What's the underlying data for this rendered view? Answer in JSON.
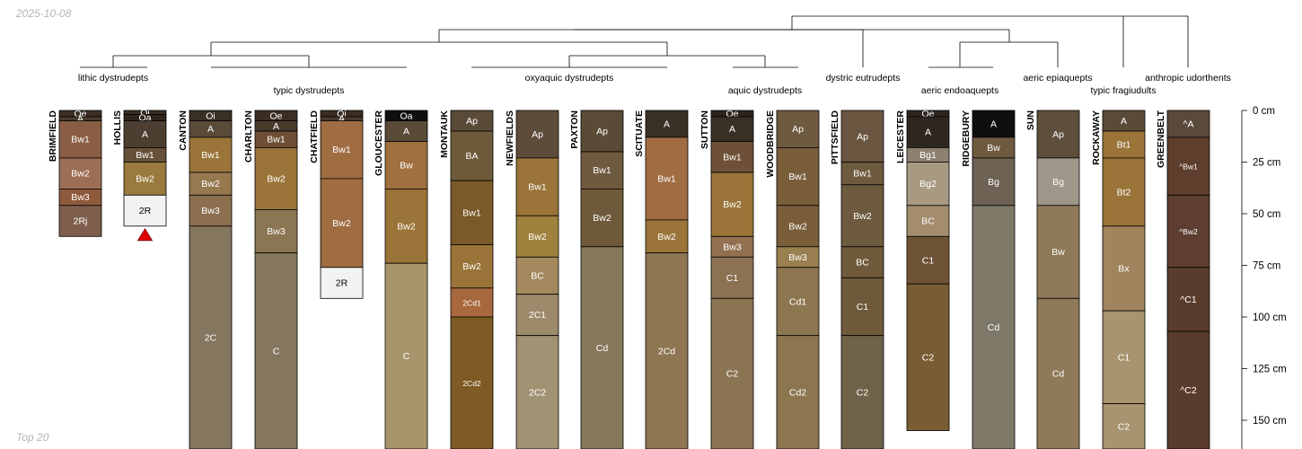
{
  "header": {
    "date": "2025-10-08"
  },
  "footer": {
    "note": "Top 20"
  },
  "chart_data": {
    "type": "soil-profile-sketch",
    "depth_unit": "cm",
    "depth_max": 163,
    "depth_ticks": [
      0,
      25,
      50,
      75,
      100,
      125,
      150
    ],
    "depth_tick_labels": [
      "0 cm",
      "25 cm",
      "50 cm",
      "75 cm",
      "100 cm",
      "125 cm",
      "150 cm"
    ],
    "groups": [
      {
        "label": "lithic dystrudepts",
        "profiles": [
          "BRIMFIELD",
          "HOLLIS"
        ]
      },
      {
        "label": "typic dystrudepts",
        "profiles": [
          "CANTON",
          "CHARLTON",
          "CHATFIELD",
          "GLOUCESTER"
        ]
      },
      {
        "label": "oxyaquic dystrudepts",
        "profiles": [
          "MONTAUK",
          "NEWFIELDS",
          "PAXTON",
          "SCITUATE"
        ]
      },
      {
        "label": "aquic dystrudepts",
        "profiles": [
          "SUTTON",
          "WOODBRIDGE"
        ]
      },
      {
        "label": "dystric eutrudepts",
        "profiles": [
          "PITTSFIELD"
        ]
      },
      {
        "label": "aeric endoaquepts",
        "profiles": [
          "LEICESTER",
          "RIDGEBURY"
        ]
      },
      {
        "label": "aeric epiaquepts",
        "profiles": [
          "SUN"
        ]
      },
      {
        "label": "typic fragiudults",
        "profiles": [
          "ROCKAWAY"
        ]
      },
      {
        "label": "anthropic udorthents",
        "profiles": [
          "GREENBELT"
        ]
      }
    ],
    "profiles": [
      {
        "name": "BRIMFIELD",
        "bedrock": false,
        "horizons": [
          {
            "name": "Oe",
            "top": 0,
            "bottom": 3,
            "color": "#3b2e24"
          },
          {
            "name": "A",
            "top": 3,
            "bottom": 5,
            "color": "#4a3a2c"
          },
          {
            "name": "Bw1",
            "top": 5,
            "bottom": 23,
            "color": "#8a5e44"
          },
          {
            "name": "Bw2",
            "top": 23,
            "bottom": 38,
            "color": "#9c6e56"
          },
          {
            "name": "Bw3",
            "top": 38,
            "bottom": 46,
            "color": "#8e5a3c"
          },
          {
            "name": "2Rj",
            "top": 46,
            "bottom": 61,
            "color": "#7e5e4c"
          }
        ]
      },
      {
        "name": "HOLLIS",
        "bedrock": true,
        "horizons": [
          {
            "name": "Oi",
            "top": 0,
            "bottom": 2,
            "color": "#3a2d22"
          },
          {
            "name": "Oa",
            "top": 2,
            "bottom": 5,
            "color": "#2f241d"
          },
          {
            "name": "A",
            "top": 5,
            "bottom": 18,
            "color": "#4c3e30"
          },
          {
            "name": "Bw1",
            "top": 18,
            "bottom": 25,
            "color": "#66523a"
          },
          {
            "name": "Bw2",
            "top": 25,
            "bottom": 41,
            "color": "#9a7a3e"
          },
          {
            "name": "2R",
            "top": 41,
            "bottom": 56,
            "color": "#f2f2f2"
          }
        ]
      },
      {
        "name": "CANTON",
        "bedrock": false,
        "horizons": [
          {
            "name": "Oi",
            "top": 0,
            "bottom": 5,
            "color": "#3a2f25"
          },
          {
            "name": "A",
            "top": 5,
            "bottom": 13,
            "color": "#5a4a38"
          },
          {
            "name": "Bw1",
            "top": 13,
            "bottom": 30,
            "color": "#9a7438"
          },
          {
            "name": "Bw2",
            "top": 30,
            "bottom": 41,
            "color": "#96794f"
          },
          {
            "name": "Bw3",
            "top": 41,
            "bottom": 56,
            "color": "#8c6f4f"
          },
          {
            "name": "2C",
            "top": 56,
            "bottom": 165,
            "color": "#84765f"
          }
        ]
      },
      {
        "name": "CHARLTON",
        "bedrock": false,
        "horizons": [
          {
            "name": "Oe",
            "top": 0,
            "bottom": 5,
            "color": "#3a2e24"
          },
          {
            "name": "A",
            "top": 5,
            "bottom": 10,
            "color": "#4a3a2c"
          },
          {
            "name": "Bw1",
            "top": 10,
            "bottom": 18,
            "color": "#6e4e34"
          },
          {
            "name": "Bw2",
            "top": 18,
            "bottom": 48,
            "color": "#9a7438"
          },
          {
            "name": "Bw3",
            "top": 48,
            "bottom": 69,
            "color": "#8a7652"
          },
          {
            "name": "C",
            "top": 69,
            "bottom": 165,
            "color": "#84765f"
          }
        ]
      },
      {
        "name": "CHATFIELD",
        "bedrock": false,
        "horizons": [
          {
            "name": "Oi",
            "top": 0,
            "bottom": 3,
            "color": "#3a2d22"
          },
          {
            "name": "A",
            "top": 3,
            "bottom": 5,
            "color": "#4a3a2c"
          },
          {
            "name": "Bw1",
            "top": 5,
            "bottom": 33,
            "color": "#a06c42"
          },
          {
            "name": "Bw2",
            "top": 33,
            "bottom": 76,
            "color": "#a06c42"
          },
          {
            "name": "2R",
            "top": 76,
            "bottom": 91,
            "color": "#f2f2f2"
          }
        ]
      },
      {
        "name": "GLOUCESTER",
        "bedrock": false,
        "horizons": [
          {
            "name": "Oa",
            "top": 0,
            "bottom": 5,
            "color": "#0f0f0f"
          },
          {
            "name": "A",
            "top": 5,
            "bottom": 15,
            "color": "#5a4a38"
          },
          {
            "name": "Bw",
            "top": 15,
            "bottom": 38,
            "color": "#a0703e"
          },
          {
            "name": "Bw2",
            "top": 38,
            "bottom": 74,
            "color": "#9a7438"
          },
          {
            "name": "C",
            "top": 74,
            "bottom": 165,
            "color": "#a8946a"
          }
        ]
      },
      {
        "name": "MONTAUK",
        "bedrock": false,
        "horizons": [
          {
            "name": "Ap",
            "top": 0,
            "bottom": 10,
            "color": "#5a4a38"
          },
          {
            "name": "BA",
            "top": 10,
            "bottom": 34,
            "color": "#6e5a3a"
          },
          {
            "name": "Bw1",
            "top": 34,
            "bottom": 65,
            "color": "#7a5a28"
          },
          {
            "name": "Bw2",
            "top": 65,
            "bottom": 86,
            "color": "#9a7438"
          },
          {
            "name": "2Cd1",
            "top": 86,
            "bottom": 100,
            "color": "#a8683e"
          },
          {
            "name": "2Cd2",
            "top": 100,
            "bottom": 165,
            "color": "#7e5a24"
          }
        ]
      },
      {
        "name": "NEWFIELDS",
        "bedrock": false,
        "horizons": [
          {
            "name": "Ap",
            "top": 0,
            "bottom": 23,
            "color": "#5e4c3a"
          },
          {
            "name": "Bw1",
            "top": 23,
            "bottom": 51,
            "color": "#9a7438"
          },
          {
            "name": "Bw2",
            "top": 51,
            "bottom": 71,
            "color": "#a0823e"
          },
          {
            "name": "BC",
            "top": 71,
            "bottom": 89,
            "color": "#a4895e"
          },
          {
            "name": "2C1",
            "top": 89,
            "bottom": 109,
            "color": "#9c8a6a"
          },
          {
            "name": "2C2",
            "top": 109,
            "bottom": 165,
            "color": "#a09272"
          }
        ]
      },
      {
        "name": "PAXTON",
        "bedrock": false,
        "horizons": [
          {
            "name": "Ap",
            "top": 0,
            "bottom": 20,
            "color": "#5a4a36"
          },
          {
            "name": "Bw1",
            "top": 20,
            "bottom": 38,
            "color": "#6e5a3e"
          },
          {
            "name": "Bw2",
            "top": 38,
            "bottom": 66,
            "color": "#6e5a3a"
          },
          {
            "name": "Cd",
            "top": 66,
            "bottom": 165,
            "color": "#87775a"
          }
        ]
      },
      {
        "name": "SCITUATE",
        "bedrock": false,
        "horizons": [
          {
            "name": "A",
            "top": 0,
            "bottom": 13,
            "color": "#3a2f25"
          },
          {
            "name": "Bw1",
            "top": 13,
            "bottom": 53,
            "color": "#a06c42"
          },
          {
            "name": "Bw2",
            "top": 53,
            "bottom": 69,
            "color": "#9a7438"
          },
          {
            "name": "2Cd",
            "top": 69,
            "bottom": 165,
            "color": "#8e7652"
          }
        ]
      },
      {
        "name": "SUTTON",
        "bedrock": false,
        "horizons": [
          {
            "name": "Oe",
            "top": 0,
            "bottom": 3,
            "color": "#2f241d"
          },
          {
            "name": "A",
            "top": 3,
            "bottom": 15,
            "color": "#3a2f25"
          },
          {
            "name": "Bw1",
            "top": 15,
            "bottom": 30,
            "color": "#6e5036"
          },
          {
            "name": "Bw2",
            "top": 30,
            "bottom": 61,
            "color": "#9a7438"
          },
          {
            "name": "Bw3",
            "top": 61,
            "bottom": 71,
            "color": "#927050"
          },
          {
            "name": "C1",
            "top": 71,
            "bottom": 91,
            "color": "#8a7252"
          },
          {
            "name": "C2",
            "top": 91,
            "bottom": 165,
            "color": "#8a7452"
          }
        ]
      },
      {
        "name": "WOODBRIDGE",
        "bedrock": false,
        "horizons": [
          {
            "name": "Ap",
            "top": 0,
            "bottom": 18,
            "color": "#6e5a3e"
          },
          {
            "name": "Bw1",
            "top": 18,
            "bottom": 46,
            "color": "#7a5e3a"
          },
          {
            "name": "Bw2",
            "top": 46,
            "bottom": 66,
            "color": "#7a5e3a"
          },
          {
            "name": "Bw3",
            "top": 66,
            "bottom": 76,
            "color": "#9a8050"
          },
          {
            "name": "Cd1",
            "top": 76,
            "bottom": 109,
            "color": "#8c7650"
          },
          {
            "name": "Cd2",
            "top": 109,
            "bottom": 165,
            "color": "#8c7650"
          }
        ]
      },
      {
        "name": "PITTSFIELD",
        "bedrock": false,
        "horizons": [
          {
            "name": "Ap",
            "top": 0,
            "bottom": 25,
            "color": "#6a5640"
          },
          {
            "name": "Bw1",
            "top": 25,
            "bottom": 36,
            "color": "#6e5a3e"
          },
          {
            "name": "Bw2",
            "top": 36,
            "bottom": 66,
            "color": "#6e5a3e"
          },
          {
            "name": "BC",
            "top": 66,
            "bottom": 81,
            "color": "#6e5a3a"
          },
          {
            "name": "C1",
            "top": 81,
            "bottom": 109,
            "color": "#6e5a3a"
          },
          {
            "name": "C2",
            "top": 109,
            "bottom": 165,
            "color": "#6e6248"
          }
        ]
      },
      {
        "name": "LEICESTER",
        "bedrock": false,
        "horizons": [
          {
            "name": "Oe",
            "top": 0,
            "bottom": 3,
            "color": "#2f2620"
          },
          {
            "name": "A",
            "top": 3,
            "bottom": 18,
            "color": "#2f2620"
          },
          {
            "name": "Bg1",
            "top": 18,
            "bottom": 25,
            "color": "#8e8070"
          },
          {
            "name": "Bg2",
            "top": 25,
            "bottom": 46,
            "color": "#a89a82"
          },
          {
            "name": "BC",
            "top": 46,
            "bottom": 61,
            "color": "#a48c6e"
          },
          {
            "name": "C1",
            "top": 61,
            "bottom": 84,
            "color": "#6e5236"
          },
          {
            "name": "C2",
            "top": 84,
            "bottom": 155,
            "color": "#7a5c34"
          }
        ]
      },
      {
        "name": "RIDGEBURY",
        "bedrock": false,
        "horizons": [
          {
            "name": "A",
            "top": 0,
            "bottom": 13,
            "color": "#0f0f0f"
          },
          {
            "name": "Bw",
            "top": 13,
            "bottom": 23,
            "color": "#6e5a3e"
          },
          {
            "name": "Bg",
            "top": 23,
            "bottom": 46,
            "color": "#6e6254"
          },
          {
            "name": "Cd",
            "top": 46,
            "bottom": 165,
            "color": "#7e7868"
          }
        ]
      },
      {
        "name": "SUN",
        "bedrock": false,
        "horizons": [
          {
            "name": "Ap",
            "top": 0,
            "bottom": 23,
            "color": "#5e4e3c"
          },
          {
            "name": "Bg",
            "top": 23,
            "bottom": 46,
            "color": "#9e9688"
          },
          {
            "name": "Bw",
            "top": 46,
            "bottom": 91,
            "color": "#8e7a58"
          },
          {
            "name": "Cd",
            "top": 91,
            "bottom": 165,
            "color": "#8e7a58"
          }
        ]
      },
      {
        "name": "ROCKAWAY",
        "bedrock": false,
        "horizons": [
          {
            "name": "A",
            "top": 0,
            "bottom": 10,
            "color": "#5a4a38"
          },
          {
            "name": "Bt1",
            "top": 10,
            "bottom": 23,
            "color": "#9a7438"
          },
          {
            "name": "Bt2",
            "top": 23,
            "bottom": 56,
            "color": "#9a7438"
          },
          {
            "name": "Bx",
            "top": 56,
            "bottom": 97,
            "color": "#a0845e"
          },
          {
            "name": "C1",
            "top": 97,
            "bottom": 142,
            "color": "#a8946e"
          },
          {
            "name": "C2",
            "top": 142,
            "bottom": 165,
            "color": "#a8946e"
          }
        ]
      },
      {
        "name": "GREENBELT",
        "bedrock": false,
        "horizons": [
          {
            "name": "^A",
            "top": 0,
            "bottom": 13,
            "color": "#5a4a3c"
          },
          {
            "name": "^Bw1",
            "top": 13,
            "bottom": 41,
            "color": "#5e3e2c"
          },
          {
            "name": "^Bw2",
            "top": 41,
            "bottom": 76,
            "color": "#5e3e30"
          },
          {
            "name": "^C1",
            "top": 76,
            "bottom": 107,
            "color": "#5a3c2c"
          },
          {
            "name": "^C2",
            "top": 107,
            "bottom": 165,
            "color": "#5a3c2c"
          }
        ]
      }
    ]
  }
}
